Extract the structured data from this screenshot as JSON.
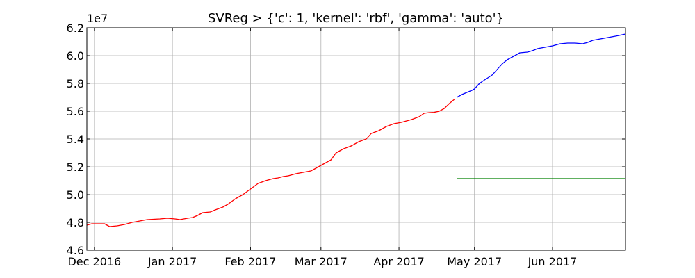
{
  "chart_data": {
    "type": "line",
    "title": "SVReg > {'c': 1, 'kernel': 'rbf', 'gamma': 'auto'}",
    "xlabel": "",
    "ylabel": "",
    "y_offset_label": "1e7",
    "y_scale": 10000000,
    "xlim": [
      "2016-11-28",
      "2017-06-30"
    ],
    "ylim": [
      4.6,
      6.2
    ],
    "yticks": [
      4.6,
      4.8,
      5.0,
      5.2,
      5.4,
      5.6,
      5.8,
      6.0,
      6.2
    ],
    "ytick_labels": [
      "4.6",
      "4.8",
      "5.0",
      "5.2",
      "5.4",
      "5.6",
      "5.8",
      "6.0",
      "6.2"
    ],
    "xticks": [
      {
        "date": "2016-12-01",
        "label": "Dec 2016"
      },
      {
        "date": "2017-01-01",
        "label": "Jan 2017"
      },
      {
        "date": "2017-02-01",
        "label": "Feb 2017"
      },
      {
        "date": "2017-03-01",
        "label": "Mar 2017"
      },
      {
        "date": "2017-04-01",
        "label": "Apr 2017"
      },
      {
        "date": "2017-05-01",
        "label": "May 2017"
      },
      {
        "date": "2017-06-01",
        "label": "Jun 2017"
      }
    ],
    "grid": true,
    "series": [
      {
        "color": "#ff0000",
        "points": [
          [
            "2016-11-28",
            4.78
          ],
          [
            "2016-11-30",
            4.79
          ],
          [
            "2016-12-03",
            4.79
          ],
          [
            "2016-12-05",
            4.79
          ],
          [
            "2016-12-07",
            4.77
          ],
          [
            "2016-12-10",
            4.775
          ],
          [
            "2016-12-13",
            4.785
          ],
          [
            "2016-12-16",
            4.8
          ],
          [
            "2016-12-19",
            4.81
          ],
          [
            "2016-12-22",
            4.82
          ],
          [
            "2016-12-25",
            4.823
          ],
          [
            "2016-12-27",
            4.825
          ],
          [
            "2016-12-30",
            4.83
          ],
          [
            "2017-01-02",
            4.825
          ],
          [
            "2017-01-04",
            4.82
          ],
          [
            "2017-01-07",
            4.83
          ],
          [
            "2017-01-09",
            4.835
          ],
          [
            "2017-01-11",
            4.85
          ],
          [
            "2017-01-13",
            4.87
          ],
          [
            "2017-01-16",
            4.875
          ],
          [
            "2017-01-18",
            4.89
          ],
          [
            "2017-01-21",
            4.91
          ],
          [
            "2017-01-23",
            4.93
          ],
          [
            "2017-01-26",
            4.97
          ],
          [
            "2017-01-29",
            5.0
          ],
          [
            "2017-02-01",
            5.04
          ],
          [
            "2017-02-04",
            5.08
          ],
          [
            "2017-02-07",
            5.1
          ],
          [
            "2017-02-10",
            5.115
          ],
          [
            "2017-02-12",
            5.12
          ],
          [
            "2017-02-14",
            5.13
          ],
          [
            "2017-02-16",
            5.135
          ],
          [
            "2017-02-19",
            5.15
          ],
          [
            "2017-02-22",
            5.16
          ],
          [
            "2017-02-25",
            5.17
          ],
          [
            "2017-02-28",
            5.2
          ],
          [
            "2017-03-02",
            5.22
          ],
          [
            "2017-03-05",
            5.25
          ],
          [
            "2017-03-07",
            5.3
          ],
          [
            "2017-03-10",
            5.33
          ],
          [
            "2017-03-13",
            5.35
          ],
          [
            "2017-03-16",
            5.38
          ],
          [
            "2017-03-19",
            5.4
          ],
          [
            "2017-03-21",
            5.44
          ],
          [
            "2017-03-24",
            5.46
          ],
          [
            "2017-03-27",
            5.49
          ],
          [
            "2017-03-30",
            5.51
          ],
          [
            "2017-04-02",
            5.52
          ],
          [
            "2017-04-04",
            5.53
          ],
          [
            "2017-04-06",
            5.54
          ],
          [
            "2017-04-09",
            5.56
          ],
          [
            "2017-04-11",
            5.585
          ],
          [
            "2017-04-13",
            5.59
          ],
          [
            "2017-04-15",
            5.592
          ],
          [
            "2017-04-17",
            5.6
          ],
          [
            "2017-04-19",
            5.62
          ],
          [
            "2017-04-21",
            5.655
          ],
          [
            "2017-04-23",
            5.685
          ]
        ]
      },
      {
        "color": "#0000ff",
        "points": [
          [
            "2017-04-24",
            5.7
          ],
          [
            "2017-04-26",
            5.72
          ],
          [
            "2017-04-28",
            5.735
          ],
          [
            "2017-04-30",
            5.75
          ],
          [
            "2017-05-01",
            5.76
          ],
          [
            "2017-05-03",
            5.8
          ],
          [
            "2017-05-05",
            5.825
          ],
          [
            "2017-05-08",
            5.86
          ],
          [
            "2017-05-10",
            5.9
          ],
          [
            "2017-05-12",
            5.94
          ],
          [
            "2017-05-14",
            5.97
          ],
          [
            "2017-05-17",
            6.0
          ],
          [
            "2017-05-19",
            6.02
          ],
          [
            "2017-05-22",
            6.025
          ],
          [
            "2017-05-24",
            6.035
          ],
          [
            "2017-05-26",
            6.05
          ],
          [
            "2017-05-29",
            6.06
          ],
          [
            "2017-06-01",
            6.07
          ],
          [
            "2017-06-04",
            6.085
          ],
          [
            "2017-06-07",
            6.09
          ],
          [
            "2017-06-10",
            6.09
          ],
          [
            "2017-06-13",
            6.085
          ],
          [
            "2017-06-15",
            6.095
          ],
          [
            "2017-06-17",
            6.11
          ],
          [
            "2017-06-20",
            6.12
          ],
          [
            "2017-06-23",
            6.13
          ],
          [
            "2017-06-26",
            6.14
          ],
          [
            "2017-06-30",
            6.155
          ]
        ]
      },
      {
        "color": "#008000",
        "points": [
          [
            "2017-04-24",
            5.115
          ],
          [
            "2017-06-30",
            5.115
          ]
        ]
      }
    ]
  }
}
